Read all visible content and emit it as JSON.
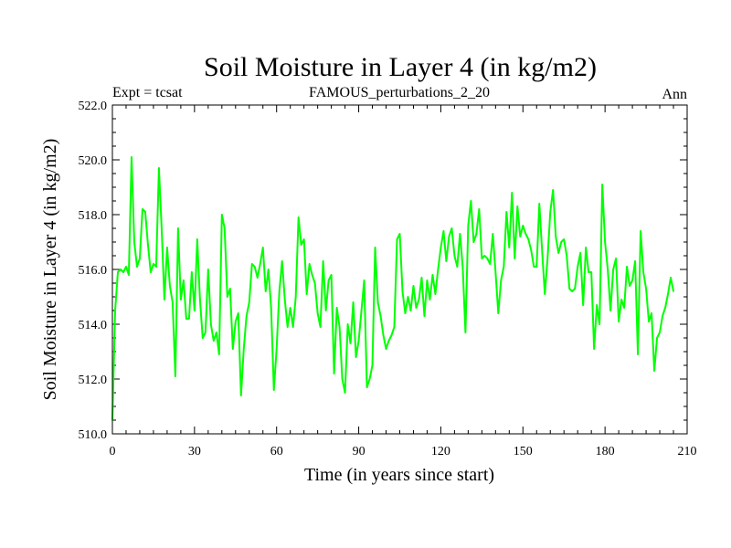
{
  "chart_data": {
    "type": "line",
    "title": "Soil Moisture in Layer 4 (in kg/m2)",
    "subtitle_left": "Expt = tcsat",
    "subtitle_center": "FAMOUS_perturbations_2_20",
    "subtitle_right": "Ann",
    "xlabel": "Time (in years since start)",
    "ylabel": "Soil Moisture in Layer 4 (in kg/m2)",
    "xlim": [
      0,
      210
    ],
    "ylim": [
      510.0,
      522.0
    ],
    "x_ticks": [
      0,
      30,
      60,
      90,
      120,
      150,
      180,
      210
    ],
    "x_tick_labels": [
      "0",
      "30",
      "60",
      "90",
      "120",
      "150",
      "180",
      "210"
    ],
    "y_ticks": [
      510.0,
      512.0,
      514.0,
      516.0,
      518.0,
      520.0,
      522.0
    ],
    "y_tick_labels": [
      "510.0",
      "512.0",
      "514.0",
      "516.0",
      "518.0",
      "520.0",
      "522.0"
    ],
    "grid": false,
    "series": [
      {
        "name": "Soil Moisture in Layer 4",
        "color": "#00ff00",
        "x_start": 0,
        "x_step": 1,
        "values": [
          510.5,
          514.5,
          515.9,
          516.0,
          515.9,
          516.1,
          515.8,
          520.1,
          517.0,
          516.1,
          516.4,
          518.2,
          518.1,
          516.9,
          515.9,
          516.2,
          516.1,
          519.7,
          517.5,
          514.9,
          516.8,
          515.4,
          514.8,
          512.1,
          517.5,
          514.9,
          515.6,
          514.2,
          514.2,
          515.9,
          514.5,
          517.1,
          514.9,
          513.5,
          513.7,
          516.0,
          514.0,
          513.4,
          513.7,
          512.9,
          518.0,
          517.5,
          515.0,
          515.3,
          513.1,
          514.1,
          514.4,
          511.4,
          513.1,
          514.3,
          514.8,
          516.2,
          516.1,
          515.7,
          516.2,
          516.8,
          515.2,
          516.0,
          514.6,
          511.6,
          513.1,
          515.2,
          516.3,
          514.9,
          513.9,
          514.6,
          513.9,
          515.0,
          517.9,
          516.9,
          517.1,
          515.1,
          516.2,
          515.8,
          515.5,
          514.4,
          513.9,
          516.3,
          514.5,
          515.6,
          515.8,
          512.2,
          514.6,
          513.9,
          512.0,
          511.5,
          514.0,
          513.3,
          514.8,
          512.8,
          513.4,
          514.5,
          515.6,
          511.7,
          512.0,
          512.5,
          516.8,
          514.8,
          514.3,
          513.6,
          513.1,
          513.4,
          513.6,
          513.9,
          517.1,
          517.3,
          515.2,
          514.4,
          515.0,
          514.5,
          515.4,
          514.6,
          514.9,
          515.7,
          514.3,
          515.6,
          514.9,
          515.8,
          515.1,
          516.0,
          516.8,
          517.4,
          516.3,
          517.2,
          517.5,
          516.5,
          516.1,
          517.3,
          516.1,
          513.7,
          517.6,
          518.5,
          517.0,
          517.3,
          518.2,
          516.4,
          516.5,
          516.4,
          516.2,
          517.3,
          515.9,
          514.4,
          515.6,
          516.1,
          518.1,
          516.8,
          518.8,
          516.4,
          518.3,
          517.2,
          517.6,
          517.3,
          517.1,
          516.7,
          516.1,
          516.1,
          518.4,
          516.7,
          515.1,
          516.4,
          518.1,
          518.9,
          517.2,
          516.6,
          517.0,
          517.1,
          516.5,
          515.3,
          515.2,
          515.3,
          516.1,
          516.6,
          514.7,
          516.8,
          515.9,
          515.9,
          513.1,
          514.7,
          514.0,
          519.1,
          517.0,
          516.0,
          514.5,
          516.0,
          516.4,
          514.1,
          514.9,
          514.6,
          516.1,
          515.4,
          515.6,
          516.3,
          512.9,
          517.4,
          515.9,
          515.3,
          514.1,
          514.4,
          512.3,
          513.5,
          513.7,
          514.3,
          514.6,
          515.1,
          515.7,
          515.2
        ]
      }
    ]
  }
}
